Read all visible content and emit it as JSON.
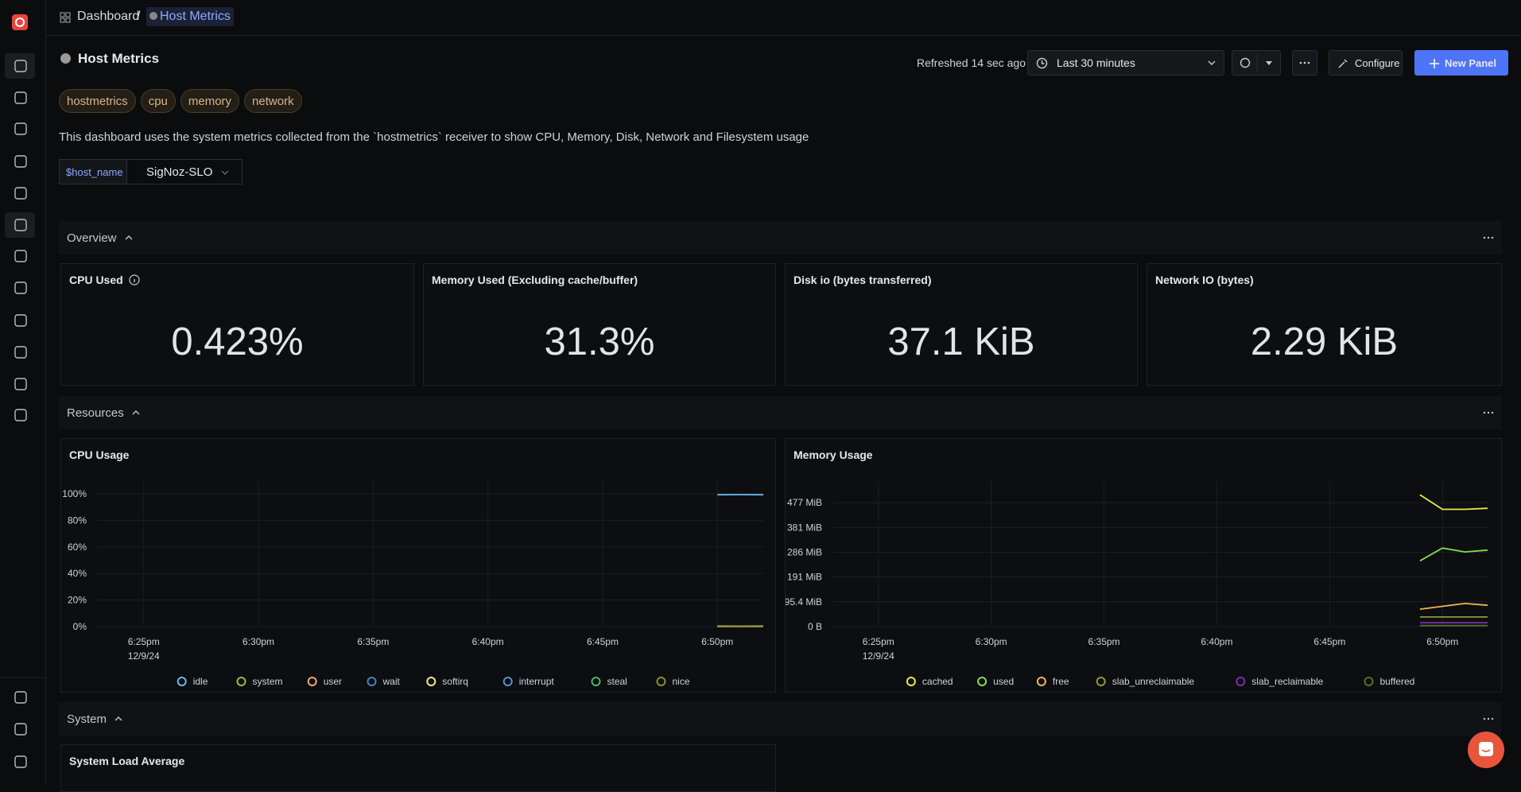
{
  "breadcrumb": {
    "root": "Dashboard",
    "separator": "/",
    "current": "Host Metrics"
  },
  "header": {
    "title": "Host Metrics",
    "refreshed": "Refreshed 14 sec ago",
    "time_range": "Last 30 minutes",
    "configure": "Configure",
    "new_panel": "New Panel"
  },
  "tags": [
    "hostmetrics",
    "cpu",
    "memory",
    "network"
  ],
  "description": "This dashboard uses the system metrics collected from the `hostmetrics` receiver to show CPU, Memory, Disk, Network and Filesystem usage",
  "variable": {
    "name": "$host_name",
    "value": "SigNoz-SLO"
  },
  "sections": [
    {
      "title": "Overview"
    },
    {
      "title": "Resources"
    },
    {
      "title": "System"
    }
  ],
  "stat_panels": [
    {
      "title": "CPU Used",
      "value": "0.423%"
    },
    {
      "title": "Memory Used (Excluding cache/buffer)",
      "value": "31.3%"
    },
    {
      "title": "Disk io (bytes transferred)",
      "value": "37.1 KiB"
    },
    {
      "title": "Network IO (bytes)",
      "value": "2.29 KiB"
    }
  ],
  "charts": [
    {
      "type": "line",
      "title": "CPU Usage",
      "x": [
        "6:50pm",
        "6:51pm",
        "6:52pm"
      ],
      "xlim": [
        "6:23pm",
        "6:52pm"
      ],
      "xticks": [
        "6:25pm",
        "6:30pm",
        "6:35pm",
        "6:40pm",
        "6:45pm",
        "6:50pm"
      ],
      "xtick_date": "12/9/24",
      "ylim": [
        0,
        100
      ],
      "yticks": [
        {
          "value": 0,
          "label": "0%"
        },
        {
          "value": 20,
          "label": "20%"
        },
        {
          "value": 40,
          "label": "40%"
        },
        {
          "value": 60,
          "label": "60%"
        },
        {
          "value": 80,
          "label": "80%"
        },
        {
          "value": 100,
          "label": "100%"
        }
      ],
      "grid": true,
      "legend": "bottom",
      "series": [
        {
          "name": "idle",
          "color": "#6cb8ea",
          "values": [
            99.3,
            99.4,
            99.3
          ]
        },
        {
          "name": "system",
          "color": "#9cbb3c",
          "values": [
            0.4,
            0.3,
            0.4
          ]
        },
        {
          "name": "user",
          "color": "#f0a86b",
          "values": [
            0.2,
            0.2,
            0.2
          ]
        },
        {
          "name": "wait",
          "color": "#4a7fc1",
          "values": [
            0,
            0,
            0
          ]
        },
        {
          "name": "softirq",
          "color": "#f2e98e",
          "values": [
            0,
            0,
            0
          ]
        },
        {
          "name": "interrupt",
          "color": "#5b8fd6",
          "values": [
            0,
            0,
            0
          ]
        },
        {
          "name": "steal",
          "color": "#4fb36a",
          "values": [
            0,
            0,
            0
          ]
        },
        {
          "name": "nice",
          "color": "#8b8f2d",
          "values": [
            0,
            0,
            0
          ]
        }
      ]
    },
    {
      "type": "line",
      "title": "Memory Usage",
      "x": [
        "6:49pm",
        "6:50pm",
        "6:51pm",
        "6:52pm"
      ],
      "xlim": [
        "6:23pm",
        "6:52pm"
      ],
      "xticks": [
        "6:25pm",
        "6:30pm",
        "6:35pm",
        "6:40pm",
        "6:45pm",
        "6:50pm"
      ],
      "xtick_date": "12/9/24",
      "ylim": [
        0,
        477
      ],
      "yticks": [
        {
          "value": 0,
          "label": "0 B"
        },
        {
          "value": 95.4,
          "label": "95.4 MiB"
        },
        {
          "value": 191,
          "label": "191 MiB"
        },
        {
          "value": 286,
          "label": "286 MiB"
        },
        {
          "value": 381,
          "label": "381 MiB"
        },
        {
          "value": 477,
          "label": "477 MiB"
        }
      ],
      "grid": true,
      "legend": "bottom",
      "series": [
        {
          "name": "cached",
          "color": "#eaea4c",
          "values": [
            507,
            451,
            451,
            455
          ]
        },
        {
          "name": "used",
          "color": "#7fe04c",
          "values": [
            253,
            302,
            287,
            294
          ]
        },
        {
          "name": "free",
          "color": "#f0b45a",
          "values": [
            67,
            78,
            89,
            82
          ]
        },
        {
          "name": "slab_unreclaimable",
          "color": "#8f9a3a",
          "values": [
            37,
            37,
            37,
            37
          ]
        },
        {
          "name": "slab_reclaimable",
          "color": "#7a30b0",
          "values": [
            15,
            15,
            15,
            15
          ]
        },
        {
          "name": "buffered",
          "color": "#5c6b2a",
          "values": [
            4,
            4,
            4,
            4
          ]
        }
      ]
    }
  ],
  "system_panel": {
    "title": "System Load Average"
  }
}
